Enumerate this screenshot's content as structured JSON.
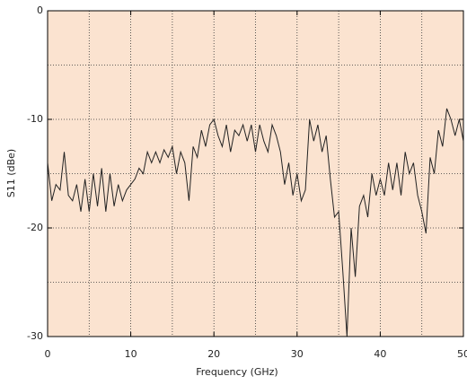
{
  "chart_data": {
    "type": "line",
    "x_label": "Frequency (GHz)",
    "y_label": "S11 (dBe)",
    "x": [
      0,
      0.5,
      1,
      1.5,
      2,
      2.5,
      3,
      3.5,
      4,
      4.5,
      5,
      5.5,
      6,
      6.5,
      7,
      7.5,
      8,
      8.5,
      9,
      9.5,
      10,
      10.5,
      11,
      11.5,
      12,
      12.5,
      13,
      13.5,
      14,
      14.5,
      15,
      15.5,
      16,
      16.5,
      17,
      17.5,
      18,
      18.5,
      19,
      19.5,
      20,
      20.5,
      21,
      21.5,
      22,
      22.5,
      23,
      23.5,
      24,
      24.5,
      25,
      25.5,
      26,
      26.5,
      27,
      27.5,
      28,
      28.5,
      29,
      29.5,
      30,
      30.5,
      31,
      31.5,
      32,
      32.5,
      33,
      33.5,
      34,
      34.5,
      35,
      35.5,
      36,
      36.5,
      37,
      37.5,
      38,
      38.5,
      39,
      39.5,
      40,
      40.5,
      41,
      41.5,
      42,
      42.5,
      43,
      43.5,
      44,
      44.5,
      45,
      45.5,
      46,
      46.5,
      47,
      47.5,
      48,
      48.5,
      49,
      49.5,
      50
    ],
    "series": [
      {
        "color": "#222222",
        "values": [
          -14,
          -17.5,
          -16,
          -16.5,
          -13,
          -17,
          -17.5,
          -16,
          -18.5,
          -15.5,
          -18.5,
          -15,
          -18,
          -14.5,
          -18.5,
          -15,
          -18,
          -16,
          -17.5,
          -16.5,
          -16,
          -15.5,
          -14.5,
          -15,
          -13,
          -14,
          -13,
          -14,
          -12.8,
          -13.5,
          -12.5,
          -15,
          -13,
          -14,
          -17.5,
          -12.5,
          -13.5,
          -11,
          -12.5,
          -10.5,
          -10,
          -11.5,
          -12.5,
          -10.5,
          -13,
          -11,
          -11.5,
          -10.5,
          -12,
          -10.5,
          -13,
          -10.5,
          -12,
          -13,
          -10.5,
          -11.5,
          -13,
          -16,
          -14,
          -17,
          -15,
          -17.5,
          -16.5,
          -10,
          -12,
          -10.5,
          -13,
          -11.5,
          -15.5,
          -19,
          -18.5,
          -24,
          -30,
          -20,
          -24.5,
          -18,
          -17,
          -19,
          -15,
          -17,
          -15.5,
          -17,
          -14,
          -16.5,
          -14,
          -17,
          -13,
          -15,
          -14,
          -17,
          -18.5,
          -20.5,
          -13.5,
          -15,
          -11,
          -12.5,
          -9,
          -10,
          -11.5,
          -10,
          -12
        ]
      }
    ],
    "xlim": [
      0,
      50
    ],
    "xticks": [
      0,
      10,
      20,
      30,
      40,
      50
    ],
    "ylim": [
      -30,
      0
    ],
    "yticks": [
      0,
      -10,
      -20,
      -30
    ],
    "x_grid": [
      5,
      10,
      15,
      20,
      25,
      30,
      35,
      40,
      45
    ],
    "y_grid": [
      -5,
      -10,
      -15,
      -20,
      -25
    ],
    "background": "#fbe3d0"
  }
}
